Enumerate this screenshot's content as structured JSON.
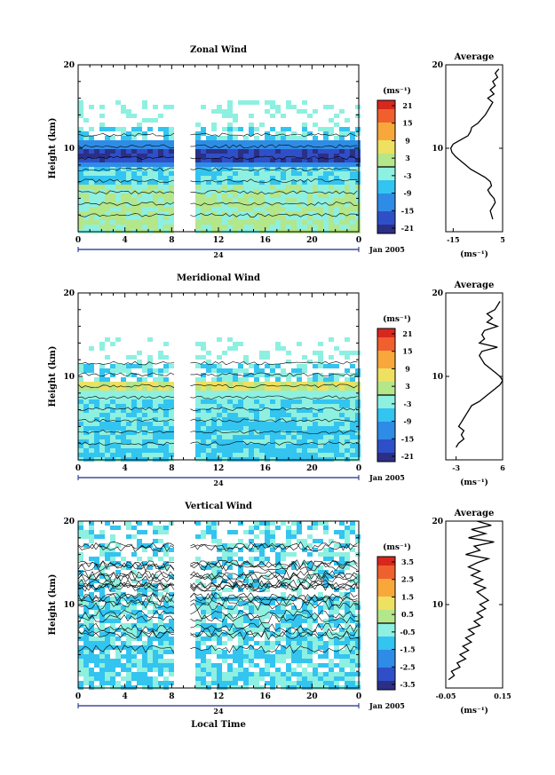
{
  "chart_data": [
    {
      "type": "heatmap",
      "title": "Zonal Wind",
      "ylabel": "Height (km)",
      "ylim": [
        0,
        20
      ],
      "yticks": [
        "20",
        "10"
      ],
      "xlim": [
        0,
        24
      ],
      "xticks": [
        "0",
        "4",
        "8",
        "12",
        "16",
        "20",
        "0"
      ],
      "day_label": "24",
      "date_label": "Jan 2005",
      "colorbar_unit": "(ms⁻¹)",
      "colorbar_ticks": [
        "21",
        "15",
        "9",
        "3",
        "-3",
        "-9",
        "-15",
        "-21"
      ],
      "data_gap_hours": [
        8.4,
        9.6
      ],
      "profile": {
        "title": "Average",
        "xlabel": "(ms⁻¹)",
        "xticks": [
          "-15",
          "5"
        ],
        "yticks": [
          "20",
          "10"
        ],
        "xlim": [
          -18,
          5
        ],
        "height_km": [
          1.5,
          2,
          2.5,
          3,
          3.5,
          4,
          4.5,
          5,
          5.5,
          6,
          6.5,
          7,
          7.5,
          8,
          8.5,
          9,
          9.5,
          10,
          10.5,
          11,
          11.5,
          12,
          12.5,
          13,
          13.5,
          14,
          14.5,
          15,
          15.5,
          16,
          16.5,
          17,
          17.5,
          18,
          18.5,
          19,
          19.5
        ],
        "wind": [
          1,
          0.5,
          0,
          1,
          2,
          1.5,
          0,
          -1,
          0.5,
          0,
          -2,
          -5,
          -8,
          -10,
          -12,
          -14,
          -15.5,
          -16,
          -15,
          -12,
          -9,
          -8,
          -7.5,
          -5,
          -3.5,
          -2,
          -1,
          0,
          1,
          -1,
          1.5,
          0,
          2,
          1,
          3,
          2,
          3.5
        ]
      }
    },
    {
      "type": "heatmap",
      "title": "Meridional Wind",
      "ylabel": "Height (km)",
      "ylim": [
        0,
        20
      ],
      "yticks": [
        "20",
        "10"
      ],
      "xlim": [
        0,
        24
      ],
      "xticks": [
        "0",
        "4",
        "8",
        "12",
        "16",
        "20",
        "0"
      ],
      "day_label": "24",
      "date_label": "Jan 2005",
      "colorbar_unit": "(ms⁻¹)",
      "colorbar_ticks": [
        "21",
        "15",
        "9",
        "3",
        "-3",
        "-9",
        "-15",
        "-21"
      ],
      "data_gap_hours": [
        8.4,
        9.6
      ],
      "profile": {
        "title": "Average",
        "xlabel": "(ms⁻¹)",
        "xticks": [
          "-3",
          "6"
        ],
        "yticks": [
          "20",
          "10"
        ],
        "xlim": [
          -5,
          6
        ],
        "height_km": [
          1.5,
          2,
          2.5,
          3,
          3.5,
          4,
          4.5,
          5,
          5.5,
          6,
          6.5,
          7,
          7.5,
          8,
          8.5,
          9,
          9.5,
          10,
          10.5,
          11,
          11.5,
          12,
          12.5,
          13,
          13.5,
          14,
          14.5,
          15,
          15.5,
          16,
          16.5,
          17,
          17.5,
          18,
          18.5,
          19
        ],
        "wind": [
          -3,
          -2.5,
          -1.5,
          -2,
          -1.5,
          -2.5,
          -2,
          -1.5,
          -1,
          -0.5,
          0,
          1.5,
          2.5,
          3.5,
          4.5,
          5.5,
          6,
          5.5,
          4.5,
          3.5,
          2.5,
          2,
          1.5,
          2,
          5,
          1.5,
          2.5,
          2,
          2.5,
          5,
          3,
          4,
          3,
          4.5,
          5,
          5.5
        ]
      }
    },
    {
      "type": "heatmap",
      "title": "Vertical Wind",
      "xlabel": "Local Time",
      "ylabel": "Height (km)",
      "ylim": [
        0,
        20
      ],
      "yticks": [
        "20",
        "10"
      ],
      "xlim": [
        0,
        24
      ],
      "xticks": [
        "0",
        "4",
        "8",
        "12",
        "16",
        "20",
        "0"
      ],
      "day_label": "24",
      "date_label": "Jan 2005",
      "colorbar_unit": "(ms⁻¹)",
      "colorbar_ticks": [
        "3.5",
        "2.5",
        "1.5",
        "0.5",
        "-0.5",
        "-1.5",
        "-2.5",
        "-3.5"
      ],
      "data_gap_hours": [
        8.4,
        9.6
      ],
      "profile": {
        "title": "Average",
        "xlabel": "(ms⁻¹)",
        "xticks": [
          "-0.05",
          "0.15"
        ],
        "yticks": [
          "20",
          "10"
        ],
        "xlim": [
          -0.05,
          0.15
        ],
        "height_km": [
          1,
          1.5,
          2,
          2.5,
          3,
          3.5,
          4,
          4.5,
          5,
          5.5,
          6,
          6.5,
          7,
          7.5,
          8,
          8.5,
          9,
          9.5,
          10,
          10.5,
          11,
          11.5,
          12,
          12.5,
          13,
          13.5,
          14,
          14.5,
          15,
          15.5,
          16,
          16.5,
          17,
          17.5,
          18,
          18.5,
          19,
          19.5,
          20
        ],
        "wind": [
          -0.04,
          -0.02,
          -0.03,
          0.0,
          -0.01,
          0.02,
          0.0,
          0.03,
          0.01,
          0.04,
          0.02,
          0.05,
          0.03,
          0.07,
          0.05,
          0.08,
          0.06,
          0.09,
          0.07,
          0.1,
          0.08,
          0.06,
          0.09,
          0.05,
          0.08,
          0.04,
          0.07,
          0.03,
          0.06,
          0.1,
          0.02,
          0.07,
          0.05,
          0.12,
          0.03,
          0.09,
          0.04,
          0.11,
          0.06
        ]
      }
    }
  ],
  "colors": {
    "scale": [
      "#2b2f86",
      "#2f4fc8",
      "#2f8ce6",
      "#33c4f0",
      "#8ef0e0",
      "#b4e68a",
      "#eee060",
      "#f8a83a",
      "#f0602e",
      "#d8281e"
    ]
  }
}
